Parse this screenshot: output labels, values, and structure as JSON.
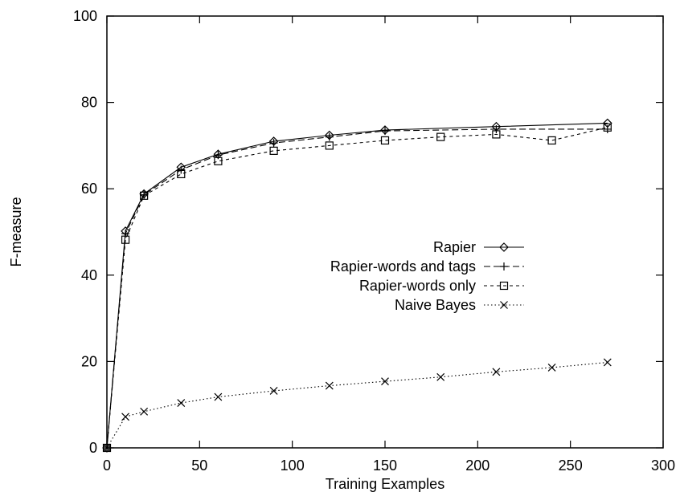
{
  "chart_data": {
    "type": "line",
    "xlabel": "Training Examples",
    "ylabel": "F-measure",
    "xlim": [
      0,
      300
    ],
    "ylim": [
      0,
      100
    ],
    "xticks": [
      "0",
      "50",
      "100",
      "150",
      "200",
      "250",
      "300"
    ],
    "yticks": [
      "0",
      "20",
      "40",
      "60",
      "80",
      "100"
    ],
    "grid": false,
    "legend_position": "right-middle",
    "series": [
      {
        "name": "Rapier",
        "marker": "diamond-icon",
        "line_style": "solid",
        "x": [
          0,
          10,
          20,
          40,
          60,
          90,
          120,
          150,
          210,
          270
        ],
        "y": [
          0,
          50.2,
          58.8,
          65.0,
          68.0,
          71.0,
          72.4,
          73.6,
          74.4,
          75.2
        ]
      },
      {
        "name": "Rapier-words and tags",
        "marker": "plus-icon",
        "line_style": "dashed",
        "x": [
          0,
          10,
          20,
          40,
          60,
          90,
          120,
          150,
          210,
          270
        ],
        "y": [
          0,
          49.6,
          58.6,
          64.4,
          67.8,
          70.6,
          72.0,
          73.4,
          73.8,
          73.8
        ]
      },
      {
        "name": "Rapier-words only",
        "marker": "square-icon",
        "line_style": "short-dashed",
        "x": [
          0,
          10,
          20,
          40,
          60,
          90,
          120,
          150,
          180,
          210,
          240,
          270
        ],
        "y": [
          0,
          48.2,
          58.4,
          63.4,
          66.4,
          68.8,
          70.0,
          71.2,
          72.0,
          72.6,
          71.2,
          74.2
        ]
      },
      {
        "name": "Naive Bayes",
        "marker": "cross-icon",
        "line_style": "dotted",
        "x": [
          0,
          10,
          20,
          40,
          60,
          90,
          120,
          150,
          180,
          210,
          240,
          270
        ],
        "y": [
          0,
          7.2,
          8.4,
          10.4,
          11.8,
          13.2,
          14.4,
          15.4,
          16.4,
          17.6,
          18.6,
          19.8
        ]
      }
    ]
  }
}
